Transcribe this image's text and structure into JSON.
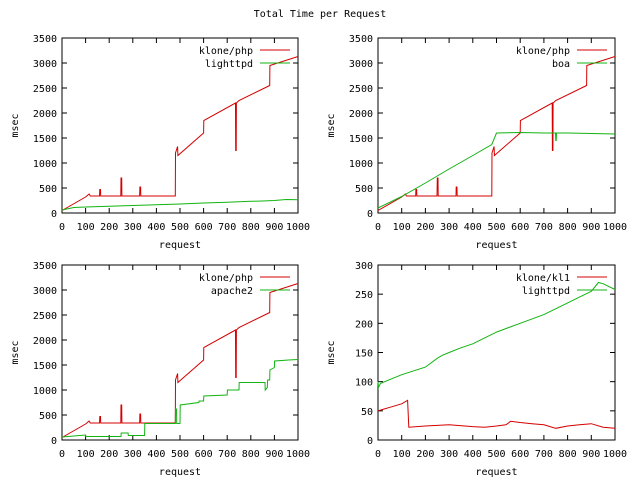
{
  "title": "Total Time per Request",
  "colors": {
    "series1": "#d40000",
    "series2": "#12b312",
    "axis": "#000000"
  },
  "chart_data": [
    {
      "type": "line",
      "title": "",
      "xlabel": "request",
      "ylabel": "msec",
      "xlim": [
        0,
        1000
      ],
      "ylim": [
        0,
        3500
      ],
      "xticks": [
        0,
        100,
        200,
        300,
        400,
        500,
        600,
        700,
        800,
        900,
        1000
      ],
      "yticks": [
        0,
        500,
        1000,
        1500,
        2000,
        2500,
        3000,
        3500
      ],
      "legend": "top-right",
      "series": [
        {
          "name": "klone/php",
          "color": "#d40000",
          "x": [
            0,
            100,
            115,
            120,
            159,
            160,
            163,
            164,
            249,
            250,
            253,
            254,
            329,
            330,
            333,
            334,
            480,
            481,
            490,
            491,
            600,
            601,
            735,
            736,
            738,
            739,
            750,
            880,
            881,
            1000
          ],
          "y": [
            50,
            320,
            380,
            340,
            340,
            470,
            470,
            340,
            340,
            700,
            700,
            340,
            340,
            520,
            520,
            340,
            340,
            1200,
            1330,
            1150,
            1600,
            1850,
            2200,
            1250,
            1250,
            2200,
            2250,
            2550,
            2950,
            3130
          ]
        },
        {
          "name": "lighttpd",
          "color": "#12b312",
          "x": [
            0,
            50,
            100,
            200,
            300,
            400,
            500,
            600,
            700,
            800,
            850,
            900,
            950,
            1000
          ],
          "y": [
            60,
            110,
            120,
            135,
            150,
            165,
            180,
            200,
            215,
            235,
            240,
            250,
            270,
            265
          ]
        }
      ]
    },
    {
      "type": "line",
      "title": "",
      "xlabel": "request",
      "ylabel": "msec",
      "xlim": [
        0,
        1000
      ],
      "ylim": [
        0,
        3500
      ],
      "xticks": [
        0,
        100,
        200,
        300,
        400,
        500,
        600,
        700,
        800,
        900,
        1000
      ],
      "yticks": [
        0,
        500,
        1000,
        1500,
        2000,
        2500,
        3000,
        3500
      ],
      "legend": "top-right",
      "series": [
        {
          "name": "klone/php",
          "color": "#d40000",
          "x": [
            0,
            100,
            115,
            120,
            159,
            160,
            163,
            164,
            249,
            250,
            253,
            254,
            329,
            330,
            333,
            334,
            480,
            481,
            490,
            491,
            600,
            601,
            735,
            736,
            738,
            739,
            750,
            880,
            881,
            1000
          ],
          "y": [
            50,
            320,
            380,
            340,
            340,
            470,
            470,
            340,
            340,
            700,
            700,
            340,
            340,
            520,
            520,
            340,
            340,
            1200,
            1330,
            1150,
            1600,
            1850,
            2200,
            1250,
            1250,
            2200,
            2250,
            2550,
            2950,
            3130
          ]
        },
        {
          "name": "boa",
          "color": "#12b312",
          "x": [
            0,
            100,
            200,
            300,
            400,
            480,
            500,
            600,
            700,
            749,
            750,
            752,
            753,
            800,
            900,
            1000
          ],
          "y": [
            100,
            330,
            600,
            880,
            1150,
            1370,
            1600,
            1610,
            1600,
            1600,
            1450,
            1450,
            1600,
            1600,
            1590,
            1580
          ]
        }
      ]
    },
    {
      "type": "line",
      "title": "",
      "xlabel": "request",
      "ylabel": "msec",
      "xlim": [
        0,
        1000
      ],
      "ylim": [
        0,
        3500
      ],
      "xticks": [
        0,
        100,
        200,
        300,
        400,
        500,
        600,
        700,
        800,
        900,
        1000
      ],
      "yticks": [
        0,
        500,
        1000,
        1500,
        2000,
        2500,
        3000,
        3500
      ],
      "legend": "top-right",
      "series": [
        {
          "name": "klone/php",
          "color": "#d40000",
          "x": [
            0,
            100,
            115,
            120,
            159,
            160,
            163,
            164,
            249,
            250,
            253,
            254,
            329,
            330,
            333,
            334,
            480,
            481,
            490,
            491,
            600,
            601,
            735,
            736,
            738,
            739,
            750,
            880,
            881,
            1000
          ],
          "y": [
            50,
            320,
            380,
            340,
            340,
            470,
            470,
            340,
            340,
            700,
            700,
            340,
            340,
            520,
            520,
            340,
            340,
            1200,
            1330,
            1150,
            1600,
            1850,
            2200,
            1250,
            1250,
            2200,
            2250,
            2550,
            2950,
            3130
          ]
        },
        {
          "name": "apache2",
          "color": "#12b312",
          "x": [
            0,
            50,
            100,
            101,
            250,
            251,
            280,
            281,
            350,
            351,
            480,
            481,
            485,
            486,
            500,
            501,
            580,
            581,
            600,
            601,
            700,
            701,
            750,
            751,
            860,
            861,
            870,
            871,
            880,
            881,
            900,
            901,
            960,
            1000
          ],
          "y": [
            60,
            80,
            100,
            70,
            70,
            140,
            140,
            90,
            90,
            330,
            330,
            620,
            620,
            330,
            330,
            700,
            750,
            780,
            780,
            880,
            900,
            1000,
            1000,
            1150,
            1150,
            1000,
            1050,
            1200,
            1200,
            1400,
            1450,
            1580,
            1600,
            1610
          ]
        }
      ]
    },
    {
      "type": "line",
      "title": "",
      "xlabel": "request",
      "ylabel": "msec",
      "xlim": [
        0,
        1000
      ],
      "ylim": [
        0,
        300
      ],
      "xticks": [
        0,
        100,
        200,
        300,
        400,
        500,
        600,
        700,
        800,
        900,
        1000
      ],
      "yticks": [
        0,
        50,
        100,
        150,
        200,
        250,
        300
      ],
      "legend": "top-right",
      "series": [
        {
          "name": "klone/kl1",
          "color": "#d40000",
          "x": [
            0,
            50,
            100,
            125,
            130,
            200,
            300,
            400,
            450,
            500,
            540,
            560,
            600,
            650,
            700,
            750,
            800,
            850,
            900,
            950,
            1000
          ],
          "y": [
            50,
            56,
            62,
            68,
            22,
            24,
            26,
            23,
            22,
            24,
            26,
            32,
            30,
            28,
            26,
            20,
            24,
            26,
            28,
            22,
            20
          ]
        },
        {
          "name": "lighttpd",
          "color": "#12b312",
          "x": [
            0,
            2,
            10,
            100,
            200,
            250,
            270,
            300,
            350,
            400,
            500,
            600,
            700,
            800,
            850,
            900,
            930,
            950,
            1000
          ],
          "y": [
            100,
            90,
            97,
            112,
            125,
            140,
            145,
            150,
            158,
            165,
            185,
            200,
            215,
            235,
            245,
            255,
            270,
            268,
            258
          ]
        }
      ]
    }
  ]
}
